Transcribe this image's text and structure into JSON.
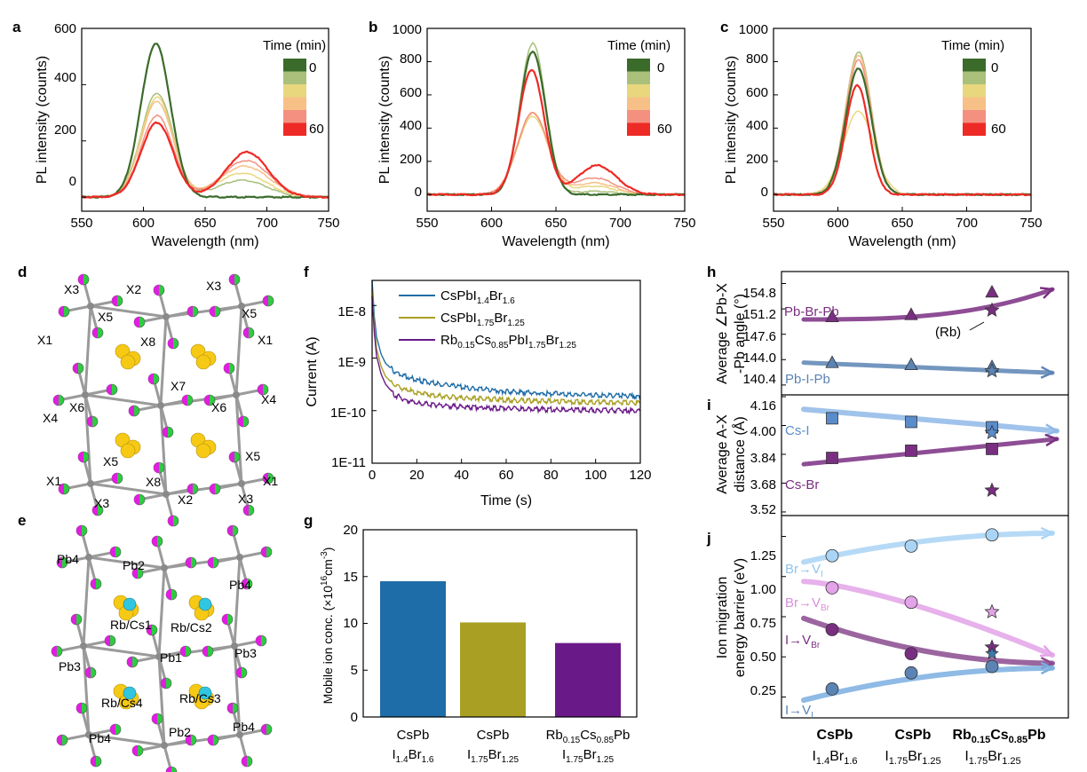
{
  "panels": {
    "a": {
      "label": "a",
      "xlabel": "Wavelength (nm)",
      "ylabel": "PL intensity (counts)",
      "xticks": [
        "550",
        "600",
        "650",
        "700",
        "750"
      ],
      "yticks": [
        "0",
        "200",
        "400",
        "600"
      ]
    },
    "b": {
      "label": "b",
      "xlabel": "Wavelength (nm)",
      "ylabel": "PL intensity (counts)",
      "xticks": [
        "550",
        "600",
        "650",
        "700",
        "750"
      ],
      "yticks": [
        "0",
        "200",
        "400",
        "600",
        "800",
        "1000"
      ]
    },
    "c": {
      "label": "c",
      "xlabel": "Wavelength (nm)",
      "ylabel": "PL intensity (counts)",
      "xticks": [
        "550",
        "600",
        "650",
        "700",
        "750"
      ],
      "yticks": [
        "0",
        "200",
        "400",
        "600",
        "800",
        "1000"
      ]
    },
    "d": {
      "label": "d"
    },
    "e": {
      "label": "e"
    },
    "f": {
      "label": "f",
      "xlabel": "Time (s)",
      "ylabel": "Current (A)",
      "xticks": [
        "0",
        "20",
        "40",
        "60",
        "80",
        "100",
        "120"
      ],
      "yticks": [
        "1E-8",
        "1E-9",
        "1E-10",
        "1E-11"
      ]
    },
    "g": {
      "label": "g",
      "ylabel": "Mobile ion conc. (×10",
      "ylabel_sup": "16",
      "ylabel_tail": "cm",
      "ylabel_sup2": "-3",
      "ylabel_end": ")",
      "yticks": [
        "0",
        "5",
        "10",
        "15",
        "20"
      ]
    },
    "h": {
      "label": "h",
      "ylabel_1": "Average ∠Pb-X",
      "ylabel_2": "-Pb angle (°)",
      "yticks": [
        "140.4",
        "144.0",
        "147.6",
        "151.2",
        "154.8"
      ],
      "annotations": {
        "pbbr": "Pb-Br-Pb",
        "pbi": "Pb-I-Pb",
        "rb": "(Rb)"
      }
    },
    "i": {
      "label": "i",
      "ylabel_1": "Average A-X",
      "ylabel_2": "distance (Å)",
      "yticks": [
        "3.52",
        "3.68",
        "3.84",
        "4.00",
        "4.16"
      ],
      "annotations": {
        "csi": "Cs-I",
        "csbr": "Cs-Br"
      }
    },
    "j": {
      "label": "j",
      "ylabel_1": "Ion migration",
      "ylabel_2": "energy barrier (eV)",
      "yticks": [
        "0.25",
        "0.50",
        "0.75",
        "1.00",
        "1.25"
      ],
      "annotations": {
        "br_vi_a": "Br→V",
        "br_vi_b": "I",
        "br_vbr_a": "Br→V",
        "br_vbr_b": "Br",
        "i_vbr_a": "I→V",
        "i_vbr_b": "Br",
        "i_vi_a": "I→V",
        "i_vi_b": "I"
      },
      "xcats": [
        {
          "l1": "CsPb",
          "l2a": "I",
          "l2b": "1.4",
          "l2c": "Br",
          "l2d": "1.6"
        },
        {
          "l1": "CsPb",
          "l2a": "I",
          "l2b": "1.75",
          "l2c": "Br",
          "l2d": "1.25"
        },
        {
          "l1a": "Rb",
          "l1b": "0.15",
          "l1c": "Cs",
          "l1d": "0.85",
          "l1e": "Pb",
          "l2a": "I",
          "l2b": "1.75",
          "l2c": "Br",
          "l2d": "1.25"
        }
      ]
    }
  },
  "legend_time": {
    "title": "Time (min)",
    "start": "0",
    "end": "60"
  },
  "legend_f": [
    {
      "a": "CsPbI",
      "b": "1.4",
      "c": "Br",
      "d": "1.6"
    },
    {
      "a": "CsPbI",
      "b": "1.75",
      "c": "Br",
      "d": "1.25"
    },
    {
      "a": "Rb",
      "b": "0.15",
      "c": "Cs",
      "d": "0.85",
      "e": "PbI",
      "f": "1.75",
      "g": "Br",
      "h": "1.25"
    }
  ],
  "g_cats": [
    {
      "l1": "CsPb",
      "l2a": "I",
      "l2b": "1.4",
      "l2c": "Br",
      "l2d": "1.6"
    },
    {
      "l1": "CsPb",
      "l2a": "I",
      "l2b": "1.75",
      "l2c": "Br",
      "l2d": "1.25"
    },
    {
      "l1a": "Rb",
      "l1b": "0.15",
      "l1c": "Cs",
      "l1d": "0.85",
      "l1e": "Pb",
      "l2a": "I",
      "l2b": "1.75",
      "l2c": "Br",
      "l2d": "1.25"
    }
  ],
  "mol_d": [
    "X3",
    "X2",
    "X3",
    "X5",
    "X5",
    "X1",
    "X8",
    "X1",
    "X7",
    "X4",
    "X6",
    "X6",
    "X4",
    "X5",
    "X5",
    "X1",
    "X8",
    "X1",
    "X3",
    "X2",
    "X3"
  ],
  "mol_e": [
    "Pb4",
    "Pb2",
    "Pb4",
    "Rb/Cs1",
    "Rb/Cs2",
    "Pb3",
    "Pb1",
    "Pb3",
    "Rb/Cs4",
    "Rb/Cs3",
    "Pb4",
    "Pb2",
    "Pb4"
  ],
  "colors": {
    "time": [
      "#3a6b2a",
      "#a9bf7a",
      "#e9d77e",
      "#f6c087",
      "#f49080",
      "#ee2a26"
    ],
    "f": [
      "#1f6da8",
      "#a9a023",
      "#6a1a88"
    ],
    "pbbr": "#7a2e82",
    "pbi": "#5b84b4",
    "csi": "#5a8ccb",
    "csbr": "#7a2e82"
  },
  "chart_data": [
    {
      "panel": "a",
      "type": "line",
      "xlabel": "Wavelength (nm)",
      "ylabel": "PL intensity (counts)",
      "xlim": [
        550,
        750
      ],
      "ylim": [
        -50,
        600
      ],
      "series": [
        {
          "name": "0",
          "peak1": [
            610,
            545,
            12
          ],
          "peak2": [
            683,
            0,
            18
          ]
        },
        {
          "name": "",
          "peak1": [
            611,
            370,
            13
          ],
          "peak2": [
            680,
            60,
            20
          ]
        },
        {
          "name": "",
          "peak1": [
            611,
            355,
            13
          ],
          "peak2": [
            680,
            85,
            20
          ]
        },
        {
          "name": "",
          "peak1": [
            611,
            340,
            13
          ],
          "peak2": [
            682,
            110,
            20
          ]
        },
        {
          "name": "",
          "peak1": [
            611,
            290,
            13
          ],
          "peak2": [
            683,
            130,
            19
          ]
        },
        {
          "name": "60",
          "peak1": [
            611,
            265,
            13
          ],
          "peak2": [
            684,
            160,
            17
          ]
        }
      ]
    },
    {
      "panel": "b",
      "type": "line",
      "xlabel": "Wavelength (nm)",
      "ylabel": "PL intensity (counts)",
      "xlim": [
        550,
        750
      ],
      "ylim": [
        -100,
        1000
      ],
      "series": [
        {
          "name": "0",
          "peak1": [
            632,
            860,
            10
          ],
          "peak2": [
            680,
            0,
            15
          ]
        },
        {
          "name": "",
          "peak1": [
            632,
            910,
            10
          ],
          "peak2": [
            680,
            20,
            15
          ]
        },
        {
          "name": "",
          "peak1": [
            632,
            470,
            12
          ],
          "peak2": [
            680,
            50,
            16
          ]
        },
        {
          "name": "",
          "peak1": [
            632,
            490,
            12
          ],
          "peak2": [
            680,
            70,
            16
          ]
        },
        {
          "name": "",
          "peak1": [
            632,
            490,
            12
          ],
          "peak2": [
            680,
            100,
            16
          ]
        },
        {
          "name": "60",
          "peak1": [
            631,
            750,
            10
          ],
          "peak2": [
            682,
            175,
            15
          ]
        }
      ]
    },
    {
      "panel": "c",
      "type": "line",
      "xlabel": "Wavelength (nm)",
      "ylabel": "PL intensity (counts)",
      "xlim": [
        550,
        750
      ],
      "ylim": [
        -100,
        1000
      ],
      "series": [
        {
          "name": "0",
          "peak1": [
            616,
            760,
            10
          ]
        },
        {
          "name": "",
          "peak1": [
            616,
            860,
            10
          ]
        },
        {
          "name": "",
          "peak1": [
            616,
            500,
            12
          ]
        },
        {
          "name": "",
          "peak1": [
            616,
            840,
            10
          ]
        },
        {
          "name": "",
          "peak1": [
            616,
            810,
            10
          ]
        },
        {
          "name": "60",
          "peak1": [
            615,
            660,
            9
          ]
        }
      ]
    },
    {
      "panel": "f",
      "type": "line",
      "xlabel": "Time (s)",
      "ylabel": "Current (A)",
      "log_y": true,
      "xlim": [
        0,
        120
      ],
      "ylim": [
        1e-11,
        3e-08
      ],
      "series": [
        {
          "name": "CsPbI1.4Br1.6",
          "x": [
            0,
            1,
            2,
            4,
            6,
            10,
            15,
            20,
            30,
            40,
            60,
            80,
            100,
            120
          ],
          "y": [
            3e-08,
            6e-09,
            2.5e-09,
            1.2e-09,
            8e-10,
            5.5e-10,
            4.5e-10,
            3.8e-10,
            3.2e-10,
            2.8e-10,
            2.3e-10,
            2.1e-10,
            1.95e-10,
            1.9e-10
          ]
        },
        {
          "name": "CsPbI1.75Br1.25",
          "x": [
            0,
            1,
            2,
            4,
            6,
            10,
            15,
            20,
            30,
            40,
            60,
            80,
            100,
            120
          ],
          "y": [
            2e-08,
            4e-09,
            1.5e-09,
            7e-10,
            4.5e-10,
            3e-10,
            2.5e-10,
            2.2e-10,
            1.9e-10,
            1.75e-10,
            1.6e-10,
            1.5e-10,
            1.45e-10,
            1.4e-10
          ]
        },
        {
          "name": "Rb0.15Cs0.85PbI1.75Br1.25",
          "x": [
            0,
            1,
            2,
            4,
            6,
            10,
            15,
            20,
            30,
            40,
            60,
            80,
            100,
            120
          ],
          "y": [
            1.5e-08,
            3e-09,
            1.1e-09,
            5e-10,
            3.2e-10,
            2e-10,
            1.6e-10,
            1.4e-10,
            1.25e-10,
            1.18e-10,
            1.1e-10,
            1.05e-10,
            1.02e-10,
            1e-10
          ]
        }
      ]
    },
    {
      "panel": "g",
      "type": "bar",
      "ylim": [
        0,
        20
      ],
      "categories": [
        "CsPbI1.4Br1.6",
        "CsPbI1.75Br1.25",
        "Rb0.15Cs0.85PbI1.75Br1.25"
      ],
      "values": [
        14.5,
        10.1,
        7.9
      ]
    },
    {
      "panel": "h",
      "type": "scatter",
      "ylim": [
        139.0,
        156.5
      ],
      "series": [
        {
          "name": "Pb-Br-Pb",
          "x": [
            0,
            1,
            2
          ],
          "y": [
            150.0,
            150.3,
            153.5
          ],
          "extra": [
            [
              2,
              151.0
            ]
          ]
        },
        {
          "name": "Pb-I-Pb",
          "x": [
            0,
            1,
            2
          ],
          "y": [
            143.5,
            143.2,
            142.9
          ],
          "extra": [
            [
              2,
              142.4
            ]
          ]
        }
      ]
    },
    {
      "panel": "i",
      "type": "scatter",
      "ylim": [
        3.5,
        4.17
      ],
      "series": [
        {
          "name": "Cs-I",
          "x": [
            0,
            1,
            2
          ],
          "y": [
            4.04,
            4.02,
            3.99
          ],
          "extra": [
            [
              2,
              3.96
            ]
          ]
        },
        {
          "name": "Cs-Br",
          "x": [
            0,
            1,
            2
          ],
          "y": [
            3.82,
            3.86,
            3.87
          ],
          "extra": [
            [
              2,
              3.64
            ]
          ]
        }
      ]
    },
    {
      "panel": "j",
      "type": "scatter",
      "ylim": [
        0.12,
        1.38
      ],
      "series": [
        {
          "name": "Br→VI",
          "x": [
            0,
            1,
            2
          ],
          "y": [
            1.13,
            1.19,
            1.26
          ]
        },
        {
          "name": "Br→VBr",
          "x": [
            0,
            1,
            2
          ],
          "y": [
            0.93,
            0.84,
            0.78
          ]
        },
        {
          "name": "I→VBr",
          "x": [
            0,
            1,
            2
          ],
          "y": [
            0.67,
            0.52,
            0.56
          ]
        },
        {
          "name": "I→VI",
          "x": [
            0,
            1,
            2
          ],
          "y": [
            0.3,
            0.4,
            0.44
          ]
        }
      ]
    }
  ]
}
